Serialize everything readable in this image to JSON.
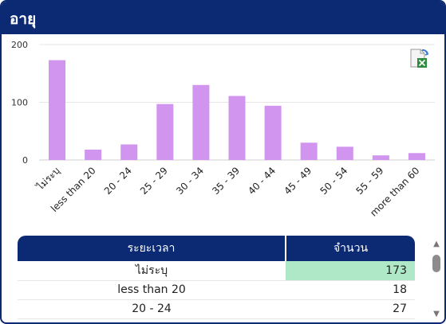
{
  "header": {
    "title": "อายุ"
  },
  "chart_data": {
    "type": "bar",
    "categories": [
      "ไม่ระบุ",
      "less than 20",
      "20 - 24",
      "25 - 29",
      "30 - 34",
      "35 - 39",
      "40 - 44",
      "45 - 49",
      "50 - 54",
      "55 - 59",
      "more than 60"
    ],
    "values": [
      173,
      18,
      27,
      97,
      130,
      111,
      94,
      30,
      23,
      8,
      12
    ],
    "ylim": [
      0,
      200
    ],
    "yticks": [
      "0",
      "100",
      "200"
    ],
    "grid": true,
    "colors": {
      "bar": "#d194ef",
      "grid": "#e6e6e6",
      "axis": "#cfcfcf"
    }
  },
  "export": {
    "icon": "excel-export-icon"
  },
  "table": {
    "headers": [
      "ระยะเวลา",
      "จำนวน"
    ],
    "rows": [
      {
        "period": "ไม่ระบุ",
        "count": "173"
      },
      {
        "period": "less than 20",
        "count": "18"
      },
      {
        "period": "20 - 24",
        "count": "27"
      }
    ]
  },
  "colors": {
    "header_bg": "#0b2a73",
    "highlight": "#aee8c6"
  }
}
